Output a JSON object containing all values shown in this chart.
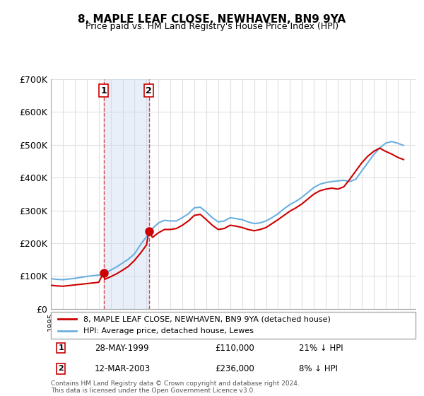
{
  "title": "8, MAPLE LEAF CLOSE, NEWHAVEN, BN9 9YA",
  "subtitle": "Price paid vs. HM Land Registry's House Price Index (HPI)",
  "ylabel": "",
  "background_color": "#ffffff",
  "plot_bg_color": "#ffffff",
  "grid_color": "#e0e0e0",
  "hpi_color": "#6ab0de",
  "price_color": "#cc0000",
  "sale_marker_color": "#cc0000",
  "vline_color": "#cc0000",
  "ylim": [
    0,
    700000
  ],
  "yticks": [
    0,
    100000,
    200000,
    300000,
    400000,
    500000,
    600000,
    700000
  ],
  "ytick_labels": [
    "£0",
    "£100K",
    "£200K",
    "£300K",
    "£400K",
    "£500K",
    "£600K",
    "£700K"
  ],
  "sale1": {
    "date_num": 1999.41,
    "price": 110000,
    "label": "1",
    "date_str": "28-MAY-1999",
    "hpi_pct": "21% ↓ HPI"
  },
  "sale2": {
    "date_num": 2003.19,
    "price": 236000,
    "label": "2",
    "date_str": "12-MAR-2003",
    "hpi_pct": "8% ↓ HPI"
  },
  "legend_line1": "8, MAPLE LEAF CLOSE, NEWHAVEN, BN9 9YA (detached house)",
  "legend_line2": "HPI: Average price, detached house, Lewes",
  "footnote": "Contains HM Land Registry data © Crown copyright and database right 2024.\nThis data is licensed under the Open Government Licence v3.0.",
  "xmin": 1995.0,
  "xmax": 2025.5,
  "hpi_years": [
    1995.0,
    1995.5,
    1996.0,
    1996.5,
    1997.0,
    1997.5,
    1998.0,
    1998.5,
    1999.0,
    1999.5,
    2000.0,
    2000.5,
    2001.0,
    2001.5,
    2002.0,
    2002.5,
    2003.0,
    2003.5,
    2004.0,
    2004.5,
    2005.0,
    2005.5,
    2006.0,
    2006.5,
    2007.0,
    2007.5,
    2008.0,
    2008.5,
    2009.0,
    2009.5,
    2010.0,
    2010.5,
    2011.0,
    2011.5,
    2012.0,
    2012.5,
    2013.0,
    2013.5,
    2014.0,
    2014.5,
    2015.0,
    2015.5,
    2016.0,
    2016.5,
    2017.0,
    2017.5,
    2018.0,
    2018.5,
    2019.0,
    2019.5,
    2020.0,
    2020.5,
    2021.0,
    2021.5,
    2022.0,
    2022.5,
    2023.0,
    2023.5,
    2024.0,
    2024.5
  ],
  "hpi_values": [
    92000,
    90000,
    89000,
    91000,
    93000,
    96000,
    99000,
    101000,
    103000,
    108000,
    118000,
    128000,
    140000,
    152000,
    168000,
    196000,
    220000,
    245000,
    262000,
    270000,
    268000,
    268000,
    278000,
    290000,
    308000,
    310000,
    295000,
    278000,
    265000,
    268000,
    278000,
    275000,
    272000,
    265000,
    260000,
    262000,
    268000,
    278000,
    290000,
    305000,
    318000,
    328000,
    340000,
    355000,
    370000,
    380000,
    385000,
    388000,
    390000,
    392000,
    388000,
    395000,
    420000,
    445000,
    470000,
    490000,
    505000,
    510000,
    505000,
    498000
  ],
  "price_years": [
    1995.0,
    1995.5,
    1996.0,
    1996.5,
    1997.0,
    1997.5,
    1998.0,
    1998.5,
    1999.0,
    1999.41,
    1999.5,
    2000.0,
    2000.5,
    2001.0,
    2001.5,
    2002.0,
    2002.5,
    2003.0,
    2003.19,
    2003.5,
    2004.0,
    2004.5,
    2005.0,
    2005.5,
    2006.0,
    2006.5,
    2007.0,
    2007.5,
    2008.0,
    2008.5,
    2009.0,
    2009.5,
    2010.0,
    2010.5,
    2011.0,
    2011.5,
    2012.0,
    2012.5,
    2013.0,
    2013.5,
    2014.0,
    2014.5,
    2015.0,
    2015.5,
    2016.0,
    2016.5,
    2017.0,
    2017.5,
    2018.0,
    2018.5,
    2019.0,
    2019.5,
    2020.0,
    2020.5,
    2021.0,
    2021.5,
    2022.0,
    2022.5,
    2023.0,
    2023.5,
    2024.0,
    2024.5
  ],
  "price_values": [
    72000,
    70000,
    69000,
    71000,
    73000,
    75000,
    77000,
    79000,
    81000,
    110000,
    90000,
    98000,
    107000,
    118000,
    130000,
    148000,
    170000,
    195000,
    236000,
    218000,
    232000,
    242000,
    242000,
    245000,
    255000,
    268000,
    285000,
    288000,
    272000,
    255000,
    242000,
    245000,
    255000,
    252000,
    248000,
    242000,
    238000,
    242000,
    248000,
    260000,
    272000,
    285000,
    298000,
    308000,
    320000,
    335000,
    350000,
    360000,
    365000,
    368000,
    365000,
    372000,
    395000,
    420000,
    445000,
    465000,
    480000,
    490000,
    480000,
    472000,
    462000,
    455000
  ]
}
